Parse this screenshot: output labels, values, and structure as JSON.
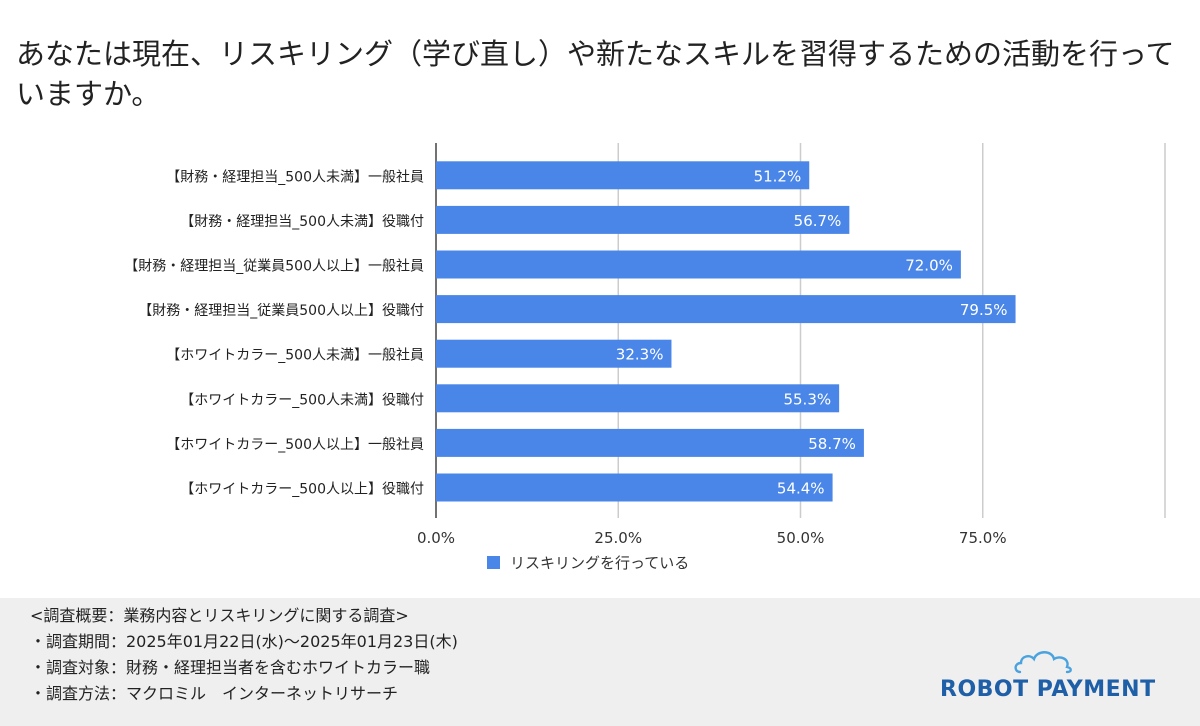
{
  "page": {
    "title": "あなたは現在、リスキリング（学び直し）や新たなスキルを習得するための活動を行っていますか。"
  },
  "chart_data": {
    "type": "bar",
    "orientation": "horizontal",
    "title": "あなたは現在、リスキリング（学び直し）や新たなスキルを習得するための活動を行っていますか。",
    "categories": [
      "【財務・経理担当_500人未満】一般社員",
      "【財務・経理担当_500人未満】役職付",
      "【財務・経理担当_従業員500人以上】一般社員",
      "【財務・経理担当_従業員500人以上】役職付",
      "【ホワイトカラー_500人未満】一般社員",
      "【ホワイトカラー_500人未満】役職付",
      "【ホワイトカラー_500人以上】一般社員",
      "【ホワイトカラー_500人以上】役職付"
    ],
    "series": [
      {
        "name": "リスキリングを行っている",
        "color": "#4a86e8",
        "values": [
          51.2,
          56.7,
          72.0,
          79.5,
          32.3,
          55.3,
          58.7,
          54.4
        ],
        "labels": [
          "51.2%",
          "56.7%",
          "72.0%",
          "79.5%",
          "32.3%",
          "55.3%",
          "58.7%",
          "54.4%"
        ]
      }
    ],
    "xlim": [
      0,
      100
    ],
    "xticks": [
      0,
      25,
      50,
      75,
      100
    ],
    "xtick_labels": [
      "0.0%",
      "25.0%",
      "50.0%",
      "75.0%",
      ""
    ],
    "grid": true,
    "legend": "bottom-center",
    "xlabel": "",
    "ylabel": ""
  },
  "footer": {
    "lines": [
      "<調査概要：業務内容とリスキリングに関する調査>",
      "・調査期間：2025年01月22日(水)〜2025年01月23日(木)",
      "・調査対象：財務・経理担当者を含むホワイトカラー職",
      "・調査方法：マクロミル　インターネットリサーチ"
    ],
    "logo_text": "ROBOT PAYMENT",
    "logo_color": "#1e5fa8"
  }
}
